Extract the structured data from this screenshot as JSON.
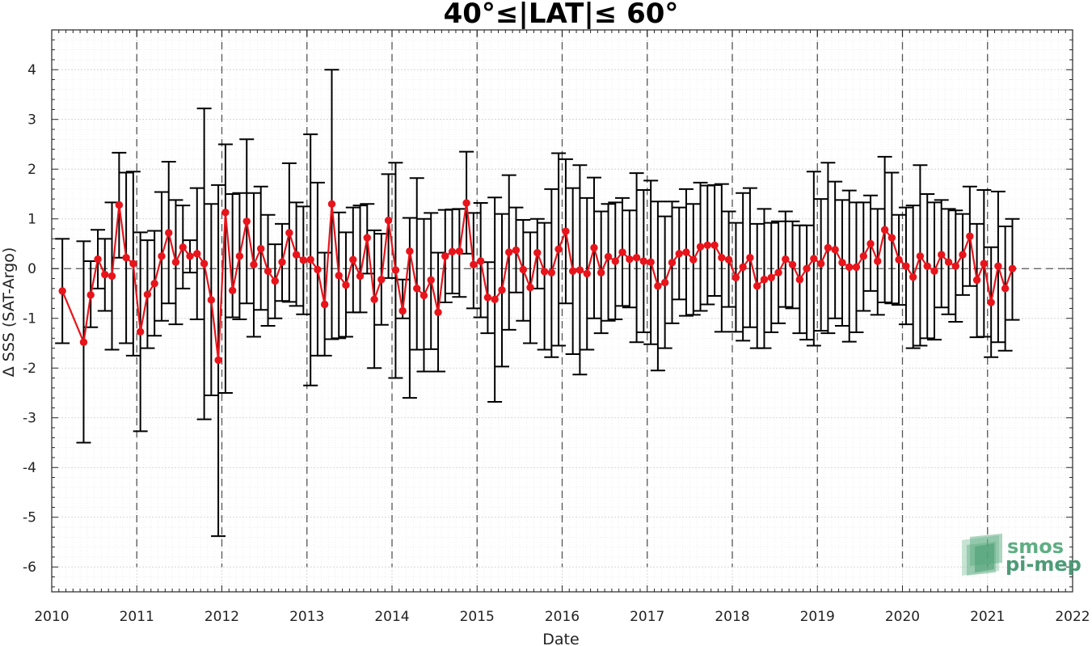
{
  "chart_data": {
    "type": "line",
    "title": "40°≤|LAT|≤ 60°",
    "xlabel": "Date",
    "ylabel": "Δ SSS (SAT-Argo)",
    "xlim": [
      2010,
      2022
    ],
    "ylim": [
      -6.5,
      4.8
    ],
    "x_ticks": [
      "2010",
      "2011",
      "2012",
      "2013",
      "2014",
      "2015",
      "2016",
      "2017",
      "2018",
      "2019",
      "2020",
      "2021",
      "2022"
    ],
    "y_ticks": [
      "4",
      "3",
      "2",
      "1",
      "0",
      "-1",
      "-2",
      "-3",
      "-4",
      "-5",
      "-6"
    ],
    "grid": true,
    "minor_grid": true,
    "year_dividers": "dashed vertical lines at each year",
    "reference_line": 0,
    "colors": {
      "series": "#e8141b",
      "errorbars": "#000000",
      "logo": "#5fae83"
    },
    "series": [
      {
        "marker": "circle",
        "points": [
          {
            "x": 2010.125,
            "y": -0.45,
            "lo": -1.5,
            "hi": 0.6
          },
          {
            "x": 2010.375,
            "y": -1.48,
            "lo": -3.5,
            "hi": 0.55
          },
          {
            "x": 2010.458,
            "y": -0.53,
            "lo": -1.18,
            "hi": 0.15
          },
          {
            "x": 2010.542,
            "y": 0.19,
            "lo": -0.4,
            "hi": 0.78
          },
          {
            "x": 2010.625,
            "y": -0.12,
            "lo": -0.85,
            "hi": 0.6
          },
          {
            "x": 2010.708,
            "y": -0.15,
            "lo": -1.63,
            "hi": 1.33
          },
          {
            "x": 2010.792,
            "y": 1.28,
            "lo": 0.22,
            "hi": 2.33
          },
          {
            "x": 2010.875,
            "y": 0.22,
            "lo": -1.5,
            "hi": 1.93
          },
          {
            "x": 2010.958,
            "y": 0.1,
            "lo": -1.75,
            "hi": 1.95
          },
          {
            "x": 2011.042,
            "y": -1.27,
            "lo": -3.27,
            "hi": 0.73
          },
          {
            "x": 2011.125,
            "y": -0.52,
            "lo": -1.6,
            "hi": 0.57
          },
          {
            "x": 2011.208,
            "y": -0.3,
            "lo": -1.35,
            "hi": 0.76
          },
          {
            "x": 2011.292,
            "y": 0.25,
            "lo": -1.05,
            "hi": 1.54
          },
          {
            "x": 2011.375,
            "y": 0.72,
            "lo": -0.7,
            "hi": 2.15
          },
          {
            "x": 2011.458,
            "y": 0.13,
            "lo": -1.12,
            "hi": 1.38
          },
          {
            "x": 2011.542,
            "y": 0.43,
            "lo": -0.4,
            "hi": 1.27
          },
          {
            "x": 2011.625,
            "y": 0.25,
            "lo": -0.08,
            "hi": 0.57
          },
          {
            "x": 2011.708,
            "y": 0.3,
            "lo": -1.02,
            "hi": 1.62
          },
          {
            "x": 2011.792,
            "y": 0.1,
            "lo": -3.03,
            "hi": 3.22
          },
          {
            "x": 2011.875,
            "y": -0.63,
            "lo": -2.55,
            "hi": 1.3
          },
          {
            "x": 2011.958,
            "y": -1.84,
            "lo": -5.38,
            "hi": 1.68
          },
          {
            "x": 2012.042,
            "y": 1.13,
            "lo": -2.5,
            "hi": 2.5
          },
          {
            "x": 2012.125,
            "y": -0.44,
            "lo": -0.98,
            "hi": 1.5
          },
          {
            "x": 2012.208,
            "y": 0.25,
            "lo": -1.02,
            "hi": 1.52
          },
          {
            "x": 2012.292,
            "y": 0.95,
            "lo": -0.7,
            "hi": 2.6
          },
          {
            "x": 2012.375,
            "y": 0.08,
            "lo": -1.37,
            "hi": 1.52
          },
          {
            "x": 2012.458,
            "y": 0.4,
            "lo": -0.83,
            "hi": 1.65
          },
          {
            "x": 2012.542,
            "y": -0.05,
            "lo": -1.15,
            "hi": 1.08
          },
          {
            "x": 2012.625,
            "y": -0.25,
            "lo": -1.0,
            "hi": 0.49
          },
          {
            "x": 2012.708,
            "y": 0.13,
            "lo": -0.65,
            "hi": 0.9
          },
          {
            "x": 2012.792,
            "y": 0.72,
            "lo": -0.67,
            "hi": 2.12
          },
          {
            "x": 2012.875,
            "y": 0.28,
            "lo": -0.75,
            "hi": 1.33
          },
          {
            "x": 2012.958,
            "y": 0.17,
            "lo": -0.92,
            "hi": 1.25
          },
          {
            "x": 2013.042,
            "y": 0.18,
            "lo": -2.35,
            "hi": 2.7
          },
          {
            "x": 2013.125,
            "y": -0.02,
            "lo": -1.75,
            "hi": 1.73
          },
          {
            "x": 2013.208,
            "y": -0.72,
            "lo": -1.75,
            "hi": 0.32
          },
          {
            "x": 2013.292,
            "y": 1.3,
            "lo": -1.42,
            "hi": 4.0
          },
          {
            "x": 2013.375,
            "y": -0.14,
            "lo": -1.4,
            "hi": 1.13
          },
          {
            "x": 2013.458,
            "y": -0.33,
            "lo": -1.37,
            "hi": 0.73
          },
          {
            "x": 2013.542,
            "y": 0.18,
            "lo": -0.88,
            "hi": 1.23
          },
          {
            "x": 2013.625,
            "y": -0.15,
            "lo": -0.88,
            "hi": 1.27
          },
          {
            "x": 2013.708,
            "y": 0.62,
            "lo": -0.1,
            "hi": 1.3
          },
          {
            "x": 2013.792,
            "y": -0.62,
            "lo": -2.0,
            "hi": 0.77
          },
          {
            "x": 2013.875,
            "y": -0.22,
            "lo": -1.13,
            "hi": 0.7
          },
          {
            "x": 2013.958,
            "y": 0.97,
            "lo": -0.19,
            "hi": 1.9
          },
          {
            "x": 2014.042,
            "y": -0.03,
            "lo": -2.2,
            "hi": 2.13
          },
          {
            "x": 2014.125,
            "y": -0.85,
            "lo": -1.0,
            "hi": -0.22
          },
          {
            "x": 2014.208,
            "y": 0.35,
            "lo": -2.6,
            "hi": 1.02
          },
          {
            "x": 2014.292,
            "y": -0.4,
            "lo": -1.63,
            "hi": 1.82
          },
          {
            "x": 2014.375,
            "y": -0.54,
            "lo": -2.07,
            "hi": 1.0
          },
          {
            "x": 2014.458,
            "y": -0.23,
            "lo": -1.62,
            "hi": 1.12
          },
          {
            "x": 2014.542,
            "y": -0.88,
            "lo": -2.07,
            "hi": 0.32
          },
          {
            "x": 2014.625,
            "y": 0.25,
            "lo": -0.68,
            "hi": 1.18
          },
          {
            "x": 2014.708,
            "y": 0.34,
            "lo": -0.5,
            "hi": 1.19
          },
          {
            "x": 2014.792,
            "y": 0.35,
            "lo": -0.57,
            "hi": 1.2
          },
          {
            "x": 2014.875,
            "y": 1.32,
            "lo": 0.3,
            "hi": 2.35
          },
          {
            "x": 2014.958,
            "y": 0.08,
            "lo": -0.8,
            "hi": 1.12
          },
          {
            "x": 2015.042,
            "y": 0.15,
            "lo": -0.98,
            "hi": 1.32
          },
          {
            "x": 2015.125,
            "y": -0.58,
            "lo": -1.3,
            "hi": 0.13
          },
          {
            "x": 2015.208,
            "y": -0.62,
            "lo": -2.68,
            "hi": 1.43
          },
          {
            "x": 2015.292,
            "y": -0.43,
            "lo": -1.97,
            "hi": 1.1
          },
          {
            "x": 2015.375,
            "y": 0.33,
            "lo": -1.23,
            "hi": 1.88
          },
          {
            "x": 2015.458,
            "y": 0.37,
            "lo": -0.48,
            "hi": 1.23
          },
          {
            "x": 2015.542,
            "y": -0.02,
            "lo": -1.05,
            "hi": 0.98
          },
          {
            "x": 2015.625,
            "y": -0.38,
            "lo": -1.5,
            "hi": 0.73
          },
          {
            "x": 2015.708,
            "y": 0.32,
            "lo": -0.4,
            "hi": 1.0
          },
          {
            "x": 2015.792,
            "y": -0.06,
            "lo": -1.63,
            "hi": 0.92
          },
          {
            "x": 2015.875,
            "y": -0.08,
            "lo": -1.78,
            "hi": 1.6
          },
          {
            "x": 2015.958,
            "y": 0.39,
            "lo": -1.55,
            "hi": 2.32
          },
          {
            "x": 2016.042,
            "y": 0.75,
            "lo": -0.7,
            "hi": 2.2
          },
          {
            "x": 2016.125,
            "y": -0.05,
            "lo": -1.72,
            "hi": 1.62
          },
          {
            "x": 2016.208,
            "y": -0.03,
            "lo": -2.13,
            "hi": 2.08
          },
          {
            "x": 2016.292,
            "y": -0.1,
            "lo": -1.63,
            "hi": 1.42
          },
          {
            "x": 2016.375,
            "y": 0.42,
            "lo": -1.0,
            "hi": 1.83
          },
          {
            "x": 2016.458,
            "y": -0.08,
            "lo": -1.3,
            "hi": 1.15
          },
          {
            "x": 2016.542,
            "y": 0.24,
            "lo": -1.05,
            "hi": 1.3
          },
          {
            "x": 2016.625,
            "y": 0.15,
            "lo": -1.02,
            "hi": 1.33
          },
          {
            "x": 2016.708,
            "y": 0.33,
            "lo": -0.75,
            "hi": 1.42
          },
          {
            "x": 2016.792,
            "y": 0.19,
            "lo": -0.78,
            "hi": 1.17
          },
          {
            "x": 2016.875,
            "y": 0.22,
            "lo": -1.48,
            "hi": 1.92
          },
          {
            "x": 2016.958,
            "y": 0.15,
            "lo": -1.28,
            "hi": 1.58
          },
          {
            "x": 2017.042,
            "y": 0.13,
            "lo": -1.52,
            "hi": 1.77
          },
          {
            "x": 2017.125,
            "y": -0.35,
            "lo": -2.05,
            "hi": 1.35
          },
          {
            "x": 2017.208,
            "y": -0.28,
            "lo": -1.6,
            "hi": 1.05
          },
          {
            "x": 2017.292,
            "y": 0.12,
            "lo": -1.1,
            "hi": 1.35
          },
          {
            "x": 2017.375,
            "y": 0.3,
            "lo": -0.62,
            "hi": 1.23
          },
          {
            "x": 2017.458,
            "y": 0.33,
            "lo": -0.95,
            "hi": 1.6
          },
          {
            "x": 2017.542,
            "y": 0.18,
            "lo": -0.93,
            "hi": 1.3
          },
          {
            "x": 2017.625,
            "y": 0.44,
            "lo": -0.85,
            "hi": 1.73
          },
          {
            "x": 2017.708,
            "y": 0.47,
            "lo": -0.72,
            "hi": 1.67
          },
          {
            "x": 2017.792,
            "y": 0.47,
            "lo": -0.55,
            "hi": 1.68
          },
          {
            "x": 2017.875,
            "y": 0.22,
            "lo": -1.27,
            "hi": 1.7
          },
          {
            "x": 2017.958,
            "y": 0.18,
            "lo": -0.77,
            "hi": 1.15
          },
          {
            "x": 2018.042,
            "y": -0.18,
            "lo": -1.27,
            "hi": 0.92
          },
          {
            "x": 2018.125,
            "y": 0.03,
            "lo": -1.45,
            "hi": 1.52
          },
          {
            "x": 2018.208,
            "y": 0.22,
            "lo": -1.18,
            "hi": 1.62
          },
          {
            "x": 2018.292,
            "y": -0.35,
            "lo": -1.6,
            "hi": 0.9
          },
          {
            "x": 2018.375,
            "y": -0.22,
            "lo": -1.6,
            "hi": 1.2
          },
          {
            "x": 2018.458,
            "y": -0.18,
            "lo": -1.28,
            "hi": 0.92
          },
          {
            "x": 2018.542,
            "y": -0.08,
            "lo": -1.1,
            "hi": 0.95
          },
          {
            "x": 2018.625,
            "y": 0.19,
            "lo": -0.77,
            "hi": 1.15
          },
          {
            "x": 2018.708,
            "y": 0.08,
            "lo": -0.8,
            "hi": 0.95
          },
          {
            "x": 2018.792,
            "y": -0.22,
            "lo": -1.3,
            "hi": 0.87
          },
          {
            "x": 2018.875,
            "y": 0.0,
            "lo": -1.43,
            "hi": 0.87
          },
          {
            "x": 2018.958,
            "y": 0.2,
            "lo": -1.55,
            "hi": 1.95
          },
          {
            "x": 2019.042,
            "y": 0.1,
            "lo": -1.25,
            "hi": 1.4
          },
          {
            "x": 2019.125,
            "y": 0.42,
            "lo": -1.3,
            "hi": 2.13
          },
          {
            "x": 2019.208,
            "y": 0.38,
            "lo": -1.0,
            "hi": 1.75
          },
          {
            "x": 2019.292,
            "y": 0.12,
            "lo": -1.15,
            "hi": 1.38
          },
          {
            "x": 2019.375,
            "y": 0.03,
            "lo": -1.47,
            "hi": 1.57
          },
          {
            "x": 2019.458,
            "y": 0.03,
            "lo": -1.28,
            "hi": 1.33
          },
          {
            "x": 2019.542,
            "y": 0.25,
            "lo": -0.85,
            "hi": 1.33
          },
          {
            "x": 2019.625,
            "y": 0.5,
            "lo": -0.45,
            "hi": 1.47
          },
          {
            "x": 2019.708,
            "y": 0.15,
            "lo": -0.93,
            "hi": 1.2
          },
          {
            "x": 2019.792,
            "y": 0.78,
            "lo": -0.68,
            "hi": 2.25
          },
          {
            "x": 2019.875,
            "y": 0.62,
            "lo": -0.7,
            "hi": 1.93
          },
          {
            "x": 2019.958,
            "y": 0.18,
            "lo": -0.73,
            "hi": 1.08
          },
          {
            "x": 2020.042,
            "y": 0.05,
            "lo": -1.12,
            "hi": 1.23
          },
          {
            "x": 2020.125,
            "y": -0.17,
            "lo": -1.6,
            "hi": 1.27
          },
          {
            "x": 2020.208,
            "y": 0.25,
            "lo": -1.55,
            "hi": 2.08
          },
          {
            "x": 2020.292,
            "y": 0.05,
            "lo": -1.4,
            "hi": 1.5
          },
          {
            "x": 2020.375,
            "y": -0.05,
            "lo": -1.43,
            "hi": 1.33
          },
          {
            "x": 2020.458,
            "y": 0.28,
            "lo": -0.78,
            "hi": 1.38
          },
          {
            "x": 2020.542,
            "y": 0.13,
            "lo": -0.92,
            "hi": 1.2
          },
          {
            "x": 2020.625,
            "y": 0.05,
            "lo": -1.07,
            "hi": 1.17
          },
          {
            "x": 2020.708,
            "y": 0.28,
            "lo": -0.53,
            "hi": 1.1
          },
          {
            "x": 2020.792,
            "y": 0.65,
            "lo": -0.35,
            "hi": 1.65
          },
          {
            "x": 2020.875,
            "y": -0.23,
            "lo": -1.38,
            "hi": 0.9
          },
          {
            "x": 2020.958,
            "y": 0.1,
            "lo": -1.37,
            "hi": 1.58
          },
          {
            "x": 2021.042,
            "y": -0.68,
            "lo": -1.78,
            "hi": 0.43
          },
          {
            "x": 2021.125,
            "y": 0.05,
            "lo": -1.48,
            "hi": 1.55
          },
          {
            "x": 2021.208,
            "y": -0.4,
            "lo": -1.65,
            "hi": 0.85
          },
          {
            "x": 2021.292,
            "y": 0.0,
            "lo": -1.03,
            "hi": 1.0
          }
        ]
      }
    ]
  },
  "logo": {
    "name": "smos-pi-mep-logo",
    "line1": "smos",
    "line2": "pi-mep"
  }
}
